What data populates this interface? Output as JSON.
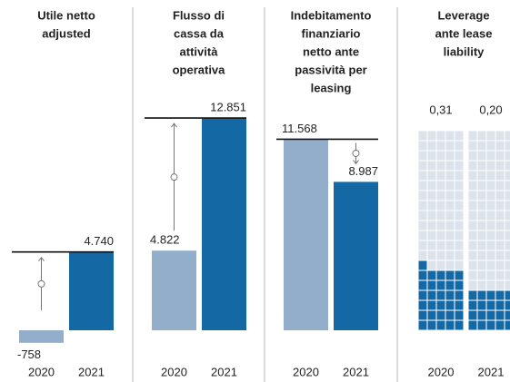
{
  "chart_data": [
    {
      "type": "bar",
      "title_lines": [
        "Utile netto",
        "adjusted"
      ],
      "categories": [
        "2020",
        "2021"
      ],
      "values": [
        -758,
        4740
      ],
      "value_labels": [
        "-758",
        "4.740"
      ],
      "colors": [
        "#93aecb",
        "#1469a5"
      ]
    },
    {
      "type": "bar",
      "title_lines": [
        "Flusso di",
        "cassa da",
        "attività",
        "operativa"
      ],
      "categories": [
        "2020",
        "2021"
      ],
      "values": [
        4822,
        12851
      ],
      "value_labels": [
        "4.822",
        "12.851"
      ],
      "colors": [
        "#93aecb",
        "#1469a5"
      ]
    },
    {
      "type": "bar",
      "title_lines": [
        "Indebitamento",
        "finanziario",
        "netto ante",
        "passività per",
        "leasing"
      ],
      "categories": [
        "2020",
        "2021"
      ],
      "values": [
        11568,
        8987
      ],
      "value_labels": [
        "11.568",
        "8.987"
      ],
      "colors": [
        "#93aecb",
        "#1469a5"
      ]
    },
    {
      "type": "waffle",
      "title_lines": [
        "Leverage",
        "ante lease",
        "liability"
      ],
      "categories": [
        "2020",
        "2021"
      ],
      "values": [
        0.31,
        0.2
      ],
      "value_labels": [
        "0,31",
        "0,20"
      ],
      "colors": [
        "#1469a5",
        "#1469a5"
      ]
    }
  ]
}
